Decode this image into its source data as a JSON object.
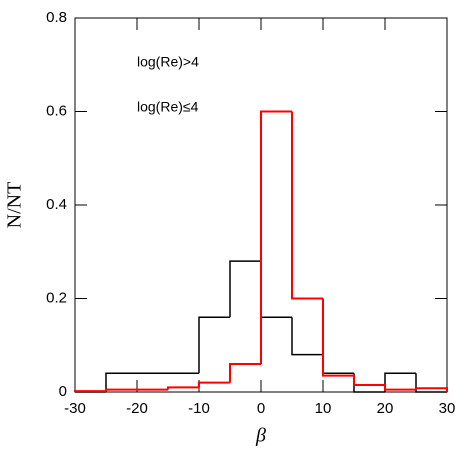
{
  "chart_data": {
    "type": "histogram",
    "x_label": "β",
    "y_label": "N/NT",
    "bins": [
      -30,
      -25,
      -20,
      -15,
      -10,
      -5,
      0,
      5,
      10,
      15,
      20,
      25,
      30
    ],
    "series": [
      {
        "name": "log(Re)>4",
        "color": "#000000",
        "values": [
          0,
          0.04,
          0.04,
          0.04,
          0.16,
          0.28,
          0.16,
          0.08,
          0.04,
          0,
          0.04,
          0
        ]
      },
      {
        "name": "log(Re)≤4",
        "color": "#ff0000",
        "values": [
          0.002,
          0.005,
          0.005,
          0.01,
          0.02,
          0.06,
          0.6,
          0.2,
          0.035,
          0.015,
          0.005,
          0.008
        ]
      }
    ],
    "xlim": [
      -30,
      30
    ],
    "ylim": [
      0,
      0.8
    ],
    "xticks": [
      -30,
      -20,
      -10,
      0,
      10,
      20,
      30
    ],
    "yticks": [
      0,
      0.2,
      0.4,
      0.6,
      0.8
    ]
  }
}
